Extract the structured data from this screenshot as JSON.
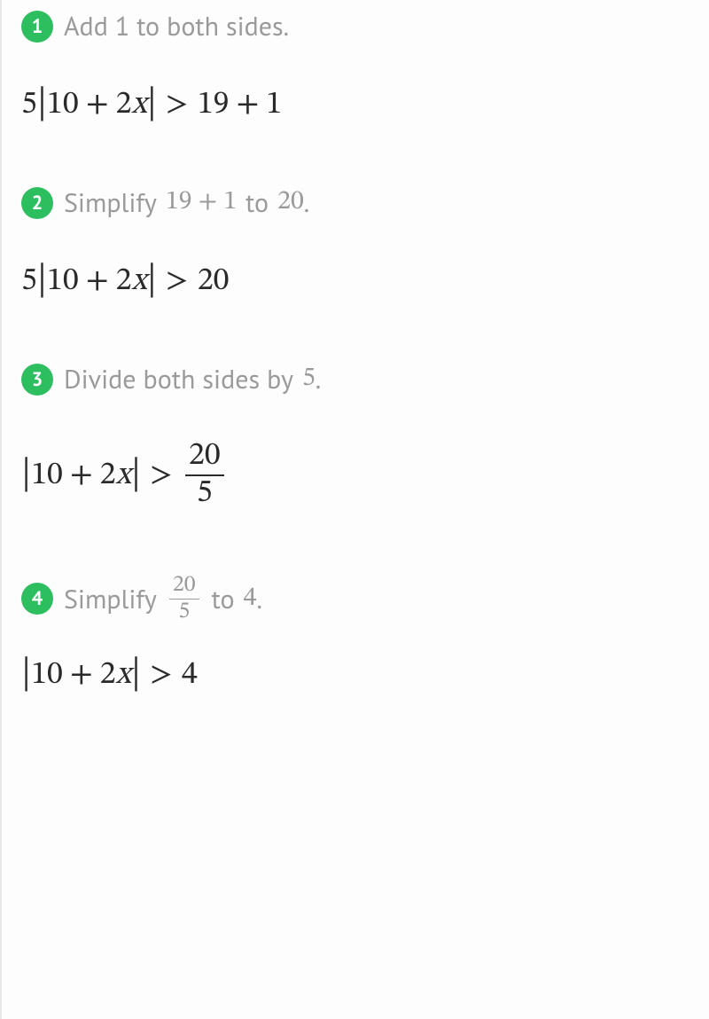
{
  "colors": {
    "badge_bg": "#2dbe60",
    "badge_text": "#ffffff",
    "step_text": "#9a9a9a",
    "equation_text": "#2a2a2a",
    "page_bg": "#fdfdfd",
    "left_border": "#e8e8e8"
  },
  "typography": {
    "step_fontsize": 30,
    "equation_fontsize": 36,
    "badge_fontsize": 22
  },
  "steps": [
    {
      "num": "1",
      "text_before": "Add 1 to both sides.",
      "inline_a": "",
      "text_mid": "",
      "inline_b": "",
      "text_after": "",
      "eq": {
        "lhs_coef": "5",
        "abs_a": "10",
        "abs_op": "+",
        "abs_b": "2",
        "abs_var": "x",
        "rel": ">",
        "rhs_a": "19",
        "rhs_op": "+",
        "rhs_b": "1",
        "rhs_single": "",
        "frac_num": "",
        "frac_den": ""
      }
    },
    {
      "num": "2",
      "text_before": "Simplify",
      "inline_a": "19 + 1",
      "text_mid": "to",
      "inline_b": "20",
      "text_after": ".",
      "eq": {
        "lhs_coef": "5",
        "abs_a": "10",
        "abs_op": "+",
        "abs_b": "2",
        "abs_var": "x",
        "rel": ">",
        "rhs_a": "",
        "rhs_op": "",
        "rhs_b": "",
        "rhs_single": "20",
        "frac_num": "",
        "frac_den": ""
      }
    },
    {
      "num": "3",
      "text_before": "Divide both sides by",
      "inline_a": "5",
      "text_mid": "",
      "inline_b": "",
      "text_after": ".",
      "eq": {
        "lhs_coef": "",
        "abs_a": "10",
        "abs_op": "+",
        "abs_b": "2",
        "abs_var": "x",
        "rel": ">",
        "rhs_a": "",
        "rhs_op": "",
        "rhs_b": "",
        "rhs_single": "",
        "frac_num": "20",
        "frac_den": "5"
      }
    },
    {
      "num": "4",
      "text_before": "Simplify",
      "inline_a": "frac:20/5",
      "text_mid": "to",
      "inline_b": "4",
      "text_after": ".",
      "eq": {
        "lhs_coef": "",
        "abs_a": "10",
        "abs_op": "+",
        "abs_b": "2",
        "abs_var": "x",
        "rel": ">",
        "rhs_a": "",
        "rhs_op": "",
        "rhs_b": "",
        "rhs_single": "4",
        "frac_num": "",
        "frac_den": ""
      }
    }
  ]
}
